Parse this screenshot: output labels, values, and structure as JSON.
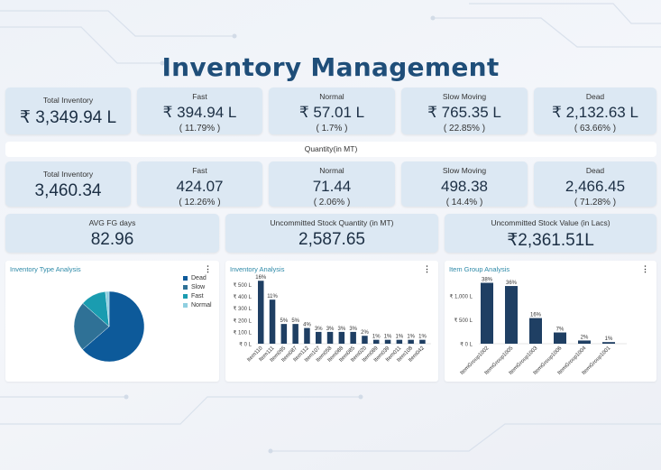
{
  "title": "Inventory Management",
  "value_row": [
    {
      "label": "Total Inventory",
      "value": "₹ 3,349.94 L",
      "pct": ""
    },
    {
      "label": "Fast",
      "value": "₹ 394.94 L",
      "pct": "( 11.79% )"
    },
    {
      "label": "Normal",
      "value": "₹ 57.01 L",
      "pct": "( 1.7% )"
    },
    {
      "label": "Slow Moving",
      "value": "₹ 765.35 L",
      "pct": "( 22.85% )"
    },
    {
      "label": "Dead",
      "value": "₹ 2,132.63 L",
      "pct": "( 63.66% )"
    }
  ],
  "quantity_header": "Quantity(in MT)",
  "quantity_row": [
    {
      "label": "Total Inventory",
      "value": "3,460.34",
      "pct": ""
    },
    {
      "label": "Fast",
      "value": "424.07",
      "pct": "( 12.26% )"
    },
    {
      "label": "Normal",
      "value": "71.44",
      "pct": "( 2.06% )"
    },
    {
      "label": "Slow Moving",
      "value": "498.38",
      "pct": "( 14.4% )"
    },
    {
      "label": "Dead",
      "value": "2,466.45",
      "pct": "( 71.28% )"
    }
  ],
  "summary_row": [
    {
      "label": "AVG FG days",
      "value": "82.96"
    },
    {
      "label": "Uncommitted Stock Quantity (in MT)",
      "value": "2,587.65"
    },
    {
      "label": "Uncommitted Stock Value (in Lacs)",
      "value": "₹2,361.51L"
    }
  ],
  "panels": {
    "pie_title": "Inventory Type Analysis",
    "bar1_title": "Inventory Analysis",
    "bar2_title": "Item Group Analysis",
    "menu_icon": "kebab-menu-icon"
  },
  "colors": {
    "dark_bar": "#1f3f63",
    "dead": "#0d5a9a",
    "slow": "#2f7196",
    "fast": "#1a9cb0",
    "normal": "#8fcfe0",
    "title": "#1f4e79"
  },
  "chart_data": [
    {
      "type": "pie",
      "title": "Inventory Type Analysis",
      "legend": "right",
      "labels": [
        "Dead",
        "Slow",
        "Fast",
        "Normal"
      ],
      "values": [
        63.66,
        22.85,
        11.79,
        1.7
      ]
    },
    {
      "type": "bar",
      "title": "Inventory Analysis",
      "categories": [
        "Item110",
        "Item111",
        "Item095",
        "Item087",
        "Item112",
        "Item107",
        "Item058",
        "Item088",
        "Item085",
        "Item020",
        "Item089",
        "Item039",
        "Item011",
        "Item108",
        "Item042"
      ],
      "values": [
        533,
        373,
        167,
        167,
        133,
        100,
        100,
        100,
        100,
        67,
        33,
        33,
        33,
        33,
        33
      ],
      "data_labels": [
        "16%",
        "11%",
        "5%",
        "5%",
        "4%",
        "3%",
        "3%",
        "3%",
        "3%",
        "2%",
        "1%",
        "1%",
        "1%",
        "1%",
        "1%"
      ],
      "yticks": [
        "₹ 0 L",
        "₹ 100 L",
        "₹ 200 L",
        "₹ 300 L",
        "₹ 400 L",
        "₹ 500 L"
      ],
      "ylim": [
        0,
        550
      ]
    },
    {
      "type": "bar",
      "title": "Item Group Analysis",
      "categories": [
        "ItemGroup1002",
        "ItemGroup1005",
        "ItemGroup1003",
        "ItemGroup1006",
        "ItemGroup1004",
        "ItemGroup1001"
      ],
      "values": [
        1273,
        1206,
        536,
        235,
        67,
        34
      ],
      "data_labels": [
        "38%",
        "36%",
        "16%",
        "7%",
        "2%",
        "1%"
      ],
      "yticks": [
        "₹ 0 L",
        "₹ 500 L",
        "₹ 1,000 L"
      ],
      "ylim": [
        0,
        1320
      ]
    }
  ]
}
